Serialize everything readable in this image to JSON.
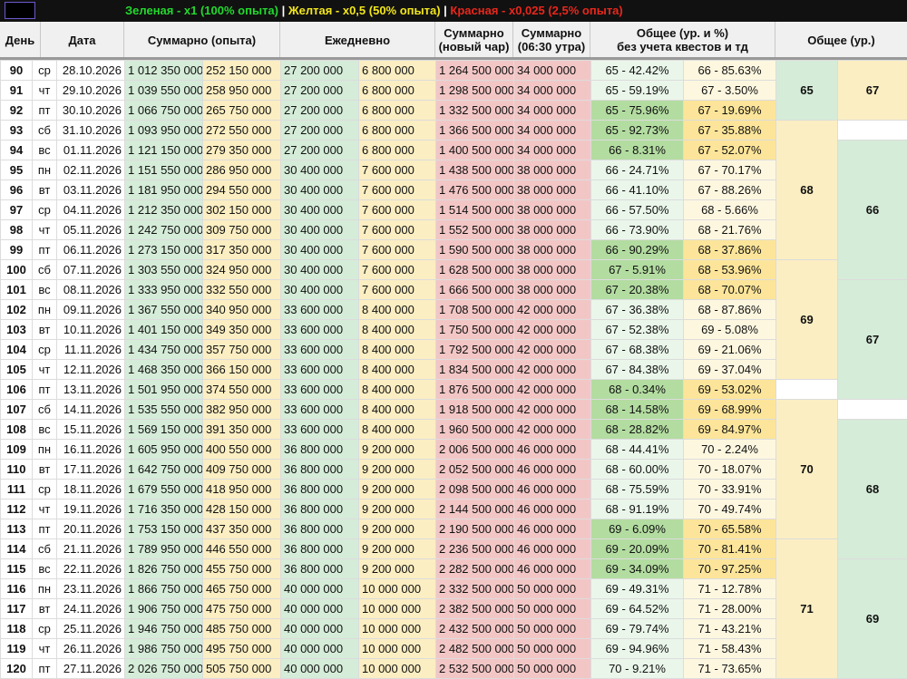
{
  "legend": {
    "green": "Зеленая - x1 (100% опыта)",
    "sep1": " | ",
    "yellow": "Желтая - x0,5 (50% опыта)",
    "sep2": " | ",
    "red": "Красная - x0,025 (2,5% опыта)"
  },
  "headers": {
    "day": "День",
    "date": "Дата",
    "sum": "Суммарно (опыта)",
    "daily": "Ежедневно",
    "sum_new_1": "Суммарно",
    "sum_new_2": "(новый чар)",
    "sum_0630_1": "Суммарно",
    "sum_0630_2": "(06:30 утра)",
    "total_pct_1": "Общее (ур. и %)",
    "total_pct_2": "без учета квестов и тд",
    "total_lvl": "Общее (ур.)"
  },
  "rows": [
    {
      "day": "90",
      "dow": "ср",
      "date": "28.10.2026",
      "sum1": "1 012 350 000",
      "sum2": "252 150 000",
      "d1": "27 200 000",
      "d2": "6 800 000",
      "r1": "1 264 500 000",
      "r2": "34 000 000",
      "p1": "65 - 42.42%",
      "p2": "66 - 85.63%"
    },
    {
      "day": "91",
      "dow": "чт",
      "date": "29.10.2026",
      "sum1": "1 039 550 000",
      "sum2": "258 950 000",
      "d1": "27 200 000",
      "d2": "6 800 000",
      "r1": "1 298 500 000",
      "r2": "34 000 000",
      "p1": "65 - 59.19%",
      "p2": "67 - 3.50%"
    },
    {
      "day": "92",
      "dow": "пт",
      "date": "30.10.2026",
      "sum1": "1 066 750 000",
      "sum2": "265 750 000",
      "d1": "27 200 000",
      "d2": "6 800 000",
      "r1": "1 332 500 000",
      "r2": "34 000 000",
      "p1": "65 - 75.96%",
      "p2": "67 - 19.69%"
    },
    {
      "day": "93",
      "dow": "сб",
      "date": "31.10.2026",
      "sum1": "1 093 950 000",
      "sum2": "272 550 000",
      "d1": "27 200 000",
      "d2": "6 800 000",
      "r1": "1 366 500 000",
      "r2": "34 000 000",
      "p1": "65 - 92.73%",
      "p2": "67 - 35.88%"
    },
    {
      "day": "94",
      "dow": "вс",
      "date": "01.11.2026",
      "sum1": "1 121 150 000",
      "sum2": "279 350 000",
      "d1": "27 200 000",
      "d2": "6 800 000",
      "r1": "1 400 500 000",
      "r2": "34 000 000",
      "p1": "66 - 8.31%",
      "p2": "67 - 52.07%"
    },
    {
      "day": "95",
      "dow": "пн",
      "date": "02.11.2026",
      "sum1": "1 151 550 000",
      "sum2": "286 950 000",
      "d1": "30 400 000",
      "d2": "7 600 000",
      "r1": "1 438 500 000",
      "r2": "38 000 000",
      "p1": "66 - 24.71%",
      "p2": "67 - 70.17%"
    },
    {
      "day": "96",
      "dow": "вт",
      "date": "03.11.2026",
      "sum1": "1 181 950 000",
      "sum2": "294 550 000",
      "d1": "30 400 000",
      "d2": "7 600 000",
      "r1": "1 476 500 000",
      "r2": "38 000 000",
      "p1": "66 - 41.10%",
      "p2": "67 - 88.26%"
    },
    {
      "day": "97",
      "dow": "ср",
      "date": "04.11.2026",
      "sum1": "1 212 350 000",
      "sum2": "302 150 000",
      "d1": "30 400 000",
      "d2": "7 600 000",
      "r1": "1 514 500 000",
      "r2": "38 000 000",
      "p1": "66 - 57.50%",
      "p2": "68 - 5.66%"
    },
    {
      "day": "98",
      "dow": "чт",
      "date": "05.11.2026",
      "sum1": "1 242 750 000",
      "sum2": "309 750 000",
      "d1": "30 400 000",
      "d2": "7 600 000",
      "r1": "1 552 500 000",
      "r2": "38 000 000",
      "p1": "66 - 73.90%",
      "p2": "68 - 21.76%"
    },
    {
      "day": "99",
      "dow": "пт",
      "date": "06.11.2026",
      "sum1": "1 273 150 000",
      "sum2": "317 350 000",
      "d1": "30 400 000",
      "d2": "7 600 000",
      "r1": "1 590 500 000",
      "r2": "38 000 000",
      "p1": "66 - 90.29%",
      "p2": "68 - 37.86%"
    },
    {
      "day": "100",
      "dow": "сб",
      "date": "07.11.2026",
      "sum1": "1 303 550 000",
      "sum2": "324 950 000",
      "d1": "30 400 000",
      "d2": "7 600 000",
      "r1": "1 628 500 000",
      "r2": "38 000 000",
      "p1": "67 - 5.91%",
      "p2": "68 - 53.96%"
    },
    {
      "day": "101",
      "dow": "вс",
      "date": "08.11.2026",
      "sum1": "1 333 950 000",
      "sum2": "332 550 000",
      "d1": "30 400 000",
      "d2": "7 600 000",
      "r1": "1 666 500 000",
      "r2": "38 000 000",
      "p1": "67 - 20.38%",
      "p2": "68 - 70.07%"
    },
    {
      "day": "102",
      "dow": "пн",
      "date": "09.11.2026",
      "sum1": "1 367 550 000",
      "sum2": "340 950 000",
      "d1": "33 600 000",
      "d2": "8 400 000",
      "r1": "1 708 500 000",
      "r2": "42 000 000",
      "p1": "67 - 36.38%",
      "p2": "68 - 87.86%"
    },
    {
      "day": "103",
      "dow": "вт",
      "date": "10.11.2026",
      "sum1": "1 401 150 000",
      "sum2": "349 350 000",
      "d1": "33 600 000",
      "d2": "8 400 000",
      "r1": "1 750 500 000",
      "r2": "42 000 000",
      "p1": "67 - 52.38%",
      "p2": "69 - 5.08%"
    },
    {
      "day": "104",
      "dow": "ср",
      "date": "11.11.2026",
      "sum1": "1 434 750 000",
      "sum2": "357 750 000",
      "d1": "33 600 000",
      "d2": "8 400 000",
      "r1": "1 792 500 000",
      "r2": "42 000 000",
      "p1": "67 - 68.38%",
      "p2": "69 - 21.06%"
    },
    {
      "day": "105",
      "dow": "чт",
      "date": "12.11.2026",
      "sum1": "1 468 350 000",
      "sum2": "366 150 000",
      "d1": "33 600 000",
      "d2": "8 400 000",
      "r1": "1 834 500 000",
      "r2": "42 000 000",
      "p1": "67 - 84.38%",
      "p2": "69 - 37.04%"
    },
    {
      "day": "106",
      "dow": "пт",
      "date": "13.11.2026",
      "sum1": "1 501 950 000",
      "sum2": "374 550 000",
      "d1": "33 600 000",
      "d2": "8 400 000",
      "r1": "1 876 500 000",
      "r2": "42 000 000",
      "p1": "68 - 0.34%",
      "p2": "69 - 53.02%"
    },
    {
      "day": "107",
      "dow": "сб",
      "date": "14.11.2026",
      "sum1": "1 535 550 000",
      "sum2": "382 950 000",
      "d1": "33 600 000",
      "d2": "8 400 000",
      "r1": "1 918 500 000",
      "r2": "42 000 000",
      "p1": "68 - 14.58%",
      "p2": "69 - 68.99%"
    },
    {
      "day": "108",
      "dow": "вс",
      "date": "15.11.2026",
      "sum1": "1 569 150 000",
      "sum2": "391 350 000",
      "d1": "33 600 000",
      "d2": "8 400 000",
      "r1": "1 960 500 000",
      "r2": "42 000 000",
      "p1": "68 - 28.82%",
      "p2": "69 - 84.97%"
    },
    {
      "day": "109",
      "dow": "пн",
      "date": "16.11.2026",
      "sum1": "1 605 950 000",
      "sum2": "400 550 000",
      "d1": "36 800 000",
      "d2": "9 200 000",
      "r1": "2 006 500 000",
      "r2": "46 000 000",
      "p1": "68 - 44.41%",
      "p2": "70 - 2.24%"
    },
    {
      "day": "110",
      "dow": "вт",
      "date": "17.11.2026",
      "sum1": "1 642 750 000",
      "sum2": "409 750 000",
      "d1": "36 800 000",
      "d2": "9 200 000",
      "r1": "2 052 500 000",
      "r2": "46 000 000",
      "p1": "68 - 60.00%",
      "p2": "70 - 18.07%"
    },
    {
      "day": "111",
      "dow": "ср",
      "date": "18.11.2026",
      "sum1": "1 679 550 000",
      "sum2": "418 950 000",
      "d1": "36 800 000",
      "d2": "9 200 000",
      "r1": "2 098 500 000",
      "r2": "46 000 000",
      "p1": "68 - 75.59%",
      "p2": "70 - 33.91%"
    },
    {
      "day": "112",
      "dow": "чт",
      "date": "19.11.2026",
      "sum1": "1 716 350 000",
      "sum2": "428 150 000",
      "d1": "36 800 000",
      "d2": "9 200 000",
      "r1": "2 144 500 000",
      "r2": "46 000 000",
      "p1": "68 - 91.19%",
      "p2": "70 - 49.74%"
    },
    {
      "day": "113",
      "dow": "пт",
      "date": "20.11.2026",
      "sum1": "1 753 150 000",
      "sum2": "437 350 000",
      "d1": "36 800 000",
      "d2": "9 200 000",
      "r1": "2 190 500 000",
      "r2": "46 000 000",
      "p1": "69 - 6.09%",
      "p2": "70 - 65.58%"
    },
    {
      "day": "114",
      "dow": "сб",
      "date": "21.11.2026",
      "sum1": "1 789 950 000",
      "sum2": "446 550 000",
      "d1": "36 800 000",
      "d2": "9 200 000",
      "r1": "2 236 500 000",
      "r2": "46 000 000",
      "p1": "69 - 20.09%",
      "p2": "70 - 81.41%"
    },
    {
      "day": "115",
      "dow": "вс",
      "date": "22.11.2026",
      "sum1": "1 826 750 000",
      "sum2": "455 750 000",
      "d1": "36 800 000",
      "d2": "9 200 000",
      "r1": "2 282 500 000",
      "r2": "46 000 000",
      "p1": "69 - 34.09%",
      "p2": "70 - 97.25%"
    },
    {
      "day": "116",
      "dow": "пн",
      "date": "23.11.2026",
      "sum1": "1 866 750 000",
      "sum2": "465 750 000",
      "d1": "40 000 000",
      "d2": "10 000 000",
      "r1": "2 332 500 000",
      "r2": "50 000 000",
      "p1": "69 - 49.31%",
      "p2": "71 - 12.78%"
    },
    {
      "day": "117",
      "dow": "вт",
      "date": "24.11.2026",
      "sum1": "1 906 750 000",
      "sum2": "475 750 000",
      "d1": "40 000 000",
      "d2": "10 000 000",
      "r1": "2 382 500 000",
      "r2": "50 000 000",
      "p1": "69 - 64.52%",
      "p2": "71 - 28.00%"
    },
    {
      "day": "118",
      "dow": "ср",
      "date": "25.11.2026",
      "sum1": "1 946 750 000",
      "sum2": "485 750 000",
      "d1": "40 000 000",
      "d2": "10 000 000",
      "r1": "2 432 500 000",
      "r2": "50 000 000",
      "p1": "69 - 79.74%",
      "p2": "71 - 43.21%"
    },
    {
      "day": "119",
      "dow": "чт",
      "date": "26.11.2026",
      "sum1": "1 986 750 000",
      "sum2": "495 750 000",
      "d1": "40 000 000",
      "d2": "10 000 000",
      "r1": "2 482 500 000",
      "r2": "50 000 000",
      "p1": "69 - 94.96%",
      "p2": "71 - 58.43%"
    },
    {
      "day": "120",
      "dow": "пт",
      "date": "27.11.2026",
      "sum1": "2 026 750 000",
      "sum2": "505 750 000",
      "d1": "40 000 000",
      "d2": "10 000 000",
      "r1": "2 532 500 000",
      "r2": "50 000 000",
      "p1": "70 - 9.21%",
      "p2": "71 - 73.65%"
    }
  ],
  "level_week": [
    "65",
    "66",
    "67",
    "68",
    "69"
  ],
  "level_total": [
    "67",
    "68",
    "69",
    "70",
    "71"
  ],
  "colors": {
    "green": "#d5ecd8",
    "yellow": "#fbeec2",
    "red": "#f3c6c6",
    "green_highlight": "#b3dca1",
    "yellow_highlight": "#fce59a"
  }
}
